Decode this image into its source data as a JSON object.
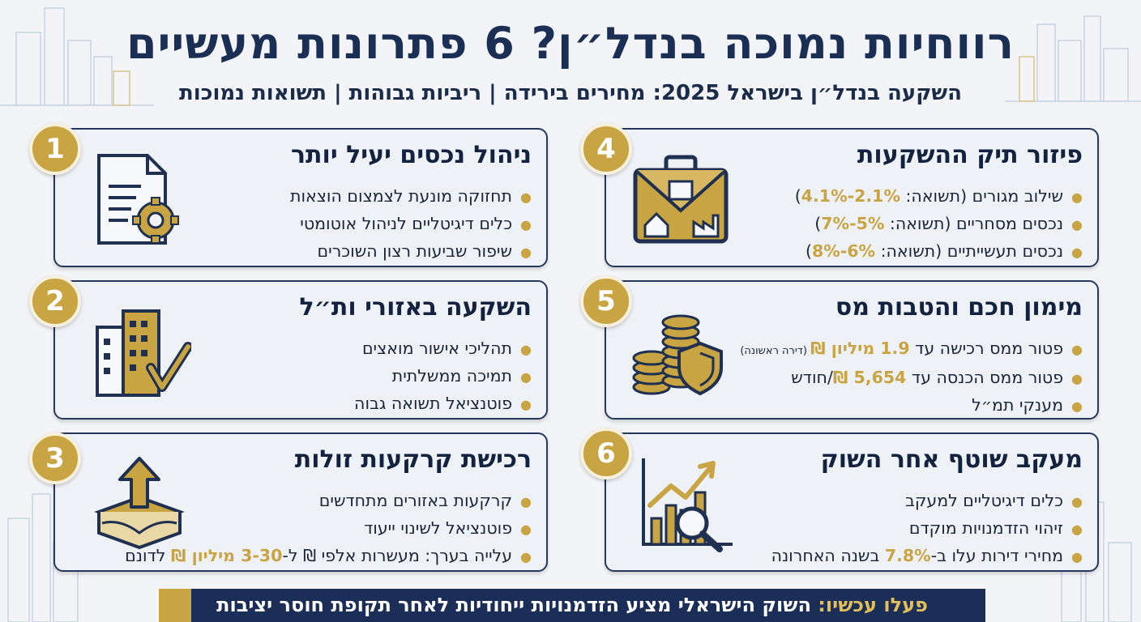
{
  "header": {
    "title": "רווחיות נמוכה בנדל״ן? 6 פתרונות מעשיים",
    "subtitle": "השקעה בנדל״ן בישראל 2025: מחירים בירידה | ריביות גבוהות | תשואות נמוכות"
  },
  "cards": [
    {
      "number": "1",
      "title": "ניהול נכסים יעיל יותר",
      "icon": "document-gear-icon",
      "items": [
        "תחזוקה מונעת לצמצום הוצאות",
        "כלים דיגיטליים לניהול אוטומטי",
        "שיפור שביעות רצון השוכרים"
      ]
    },
    {
      "number": "2",
      "title": "השקעה באזורי ות״ל",
      "icon": "buildings-check-icon",
      "items": [
        "תהליכי אישור מואצים",
        "תמיכה ממשלתית",
        "פוטנציאל תשואה גבוה"
      ]
    },
    {
      "number": "3",
      "title": "רכישת קרקעות זולות",
      "icon": "land-arrow-up-icon",
      "items": [
        "קרקעות באזורים מתחדשים",
        "פוטנציאל לשינוי ייעוד"
      ],
      "item3": {
        "a": "עלייה בערך: מעשרות אלפי ₪ ל-",
        "b": "3-30 מיליון ₪",
        "c": " לדונם"
      }
    },
    {
      "number": "4",
      "title": "פיזור תיק ההשקעות",
      "icon": "briefcase-property-icon",
      "items": [
        {
          "a": "שילוב מגורים (תשואה: ",
          "b": "2.1%-4.1%",
          "c": ")"
        },
        {
          "a": "נכסים מסחריים (תשואה: ",
          "b": "5%-7%",
          "c": ")"
        },
        {
          "a": "נכסים תעשייתיים (תשואה: ",
          "b": "6%-8%",
          "c": ")"
        }
      ]
    },
    {
      "number": "5",
      "title": "מימון חכם והטבות מס",
      "icon": "coins-shield-icon",
      "item1": {
        "a": "פטור ממס רכישה עד ",
        "b": "1.9 מיליון ₪",
        "c": " (דירה ראשונה)"
      },
      "item2": {
        "a": "פטור ממס הכנסה עד ",
        "b": "5,654 ₪",
        "c": "/חודש"
      },
      "item3": "מענקי תמ״ל"
    },
    {
      "number": "6",
      "title": "מעקב שוטף אחר השוק",
      "icon": "chart-magnifier-icon",
      "items": [
        "כלים דיגיטליים למעקב",
        "זיהוי הזדמנויות מוקדם"
      ],
      "item3": {
        "a": "מחירי דירות עלו ב-",
        "b": "7.8%",
        "c": " בשנה האחרונה"
      }
    }
  ],
  "footer": {
    "label": "פעלו עכשיו:",
    "text": " השוק הישראלי מציע הזדמנויות ייחודיות לאחר תקופת חוסר יציבות"
  },
  "colors": {
    "navy": "#1b2f55",
    "gold": "#c9a443",
    "card_bg": "#eef1f6"
  }
}
